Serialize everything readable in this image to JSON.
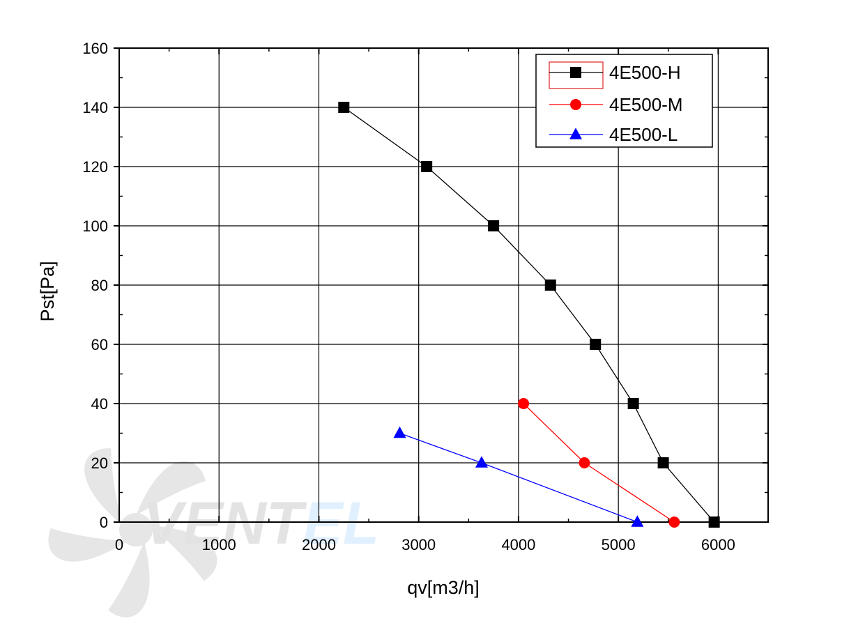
{
  "chart_data": {
    "type": "line",
    "xlabel": "qv[m3/h]",
    "ylabel": "Pst[Pa]",
    "xlim": [
      0,
      6500
    ],
    "ylim": [
      0,
      160
    ],
    "x_ticks": [
      0,
      1000,
      2000,
      3000,
      4000,
      5000,
      6000
    ],
    "y_ticks": [
      0,
      20,
      40,
      60,
      80,
      100,
      120,
      140,
      160
    ],
    "grid": true,
    "legend_position": "top-right",
    "series": [
      {
        "name": "4E500-H",
        "color": "#000000",
        "marker": "square",
        "x": [
          2250,
          3080,
          3750,
          4320,
          4770,
          5150,
          5450,
          5960
        ],
        "y": [
          140,
          120,
          100,
          80,
          60,
          40,
          20,
          0
        ]
      },
      {
        "name": "4E500-M",
        "color": "#ff0000",
        "marker": "circle",
        "x": [
          4050,
          4660,
          5560
        ],
        "y": [
          40,
          20,
          0
        ]
      },
      {
        "name": "4E500-L",
        "color": "#0000ff",
        "marker": "triangle",
        "x": [
          2810,
          3630,
          5190
        ],
        "y": [
          30,
          20,
          0
        ]
      }
    ]
  },
  "watermark": {
    "brand_dark": "VENT",
    "brand_light": "EL",
    "icon": "fan-icon"
  }
}
